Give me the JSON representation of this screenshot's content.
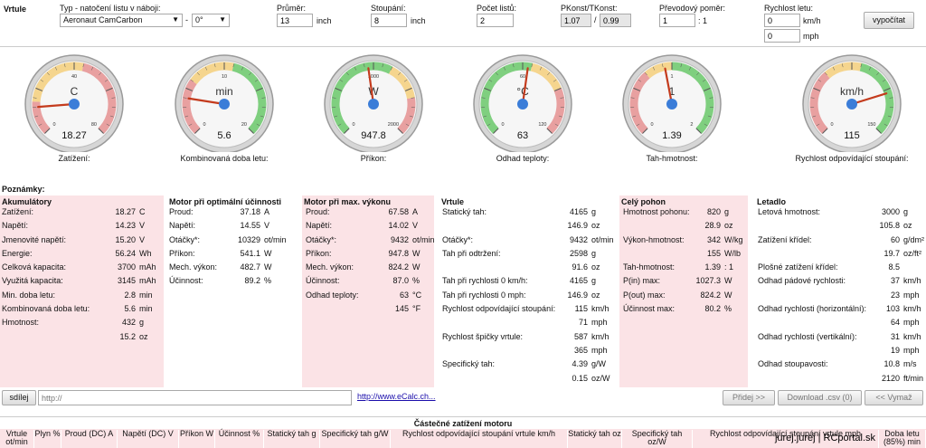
{
  "top": {
    "section": "Vrtule",
    "type_label": "Typ - natočení listu v náboji:",
    "type_value": "Aeronaut CamCarbon",
    "dash": "-",
    "angle_value": "0°",
    "diameter_label": "Průměr:",
    "diameter_value": "13",
    "diameter_unit": "inch",
    "pitch_label": "Stoupání:",
    "pitch_value": "8",
    "pitch_unit": "inch",
    "blades_label": "Počet listů:",
    "blades_value": "2",
    "konst_label": "PKonst/TKonst:",
    "pkonst_value": "1.07",
    "slash": "/",
    "tkonst_value": "0.99",
    "gear_label": "Převodový poměr:",
    "gear_value": "1",
    "gear_suffix": ": 1",
    "speed_label": "Rychlost letu:",
    "speed_kmh_value": "0",
    "speed_kmh_unit": "km/h",
    "speed_mph_value": "0",
    "speed_mph_unit": "mph",
    "calc_button": "vypočítat"
  },
  "gauges": [
    {
      "unit": "C",
      "value": "18.27",
      "label": "Zatížení:",
      "ticks": [
        "0",
        "40",
        "80"
      ],
      "needle": 0.15,
      "zones": "load"
    },
    {
      "unit": "min",
      "value": "5.6",
      "label": "Kombinovaná doba letu:",
      "ticks": [
        "0",
        "10",
        "20"
      ],
      "needle": 0.2,
      "zones": "time"
    },
    {
      "unit": "W",
      "value": "947.8",
      "label": "Příkon:",
      "ticks": [
        "0",
        "1000",
        "2000"
      ],
      "needle": 0.47,
      "zones": "power"
    },
    {
      "unit": "°C",
      "value": "63",
      "label": "Odhad teploty:",
      "ticks": [
        "0",
        "60",
        "120"
      ],
      "needle": 0.53,
      "zones": "temp"
    },
    {
      "unit": "1",
      "value": "1.39",
      "label": "Tah-hmotnost:",
      "ticks": [
        "0",
        "1",
        "2"
      ],
      "needle": 0.46,
      "zones": "thrust"
    },
    {
      "unit": "km/h",
      "value": "115",
      "label": "Rychlost odpovídající stoupání:",
      "ticks": [
        "0",
        "150"
      ],
      "needle": 0.77,
      "zones": "speed"
    }
  ],
  "notes_label": "Poznámky:",
  "columns": [
    {
      "title": "Akumulátory",
      "rows": [
        {
          "label": "Zatížení:",
          "value": "18.27",
          "unit": "C"
        },
        {
          "label": "Napětí:",
          "value": "14.23",
          "unit": "V"
        },
        {
          "label": "Jmenovité napětí:",
          "value": "15.20",
          "unit": "V"
        },
        {
          "label": "Energie:",
          "value": "56.24",
          "unit": "Wh"
        },
        {
          "label": "Celková kapacita:",
          "value": "3700",
          "unit": "mAh"
        },
        {
          "label": "Využitá kapacita:",
          "value": "3145",
          "unit": "mAh"
        },
        {
          "label": "Min. doba letu:",
          "value": "2.8",
          "unit": "min"
        },
        {
          "label": "Kombinovaná doba letu:",
          "value": "5.6",
          "unit": "min"
        },
        {
          "label": "Hmotnost:",
          "value": "432",
          "unit": "g"
        },
        {
          "label": "",
          "value": "15.2",
          "unit": "oz"
        }
      ]
    },
    {
      "title": "Motor při optimální účinnosti",
      "rows": [
        {
          "label": "Proud:",
          "value": "37.18",
          "unit": "A"
        },
        {
          "label": "Napětí:",
          "value": "14.55",
          "unit": "V"
        },
        {
          "label": "Otáčky*:",
          "value": "10329",
          "unit": "ot/min"
        },
        {
          "label": "Příkon:",
          "value": "541.1",
          "unit": "W"
        },
        {
          "label": "Mech. výkon:",
          "value": "482.7",
          "unit": "W"
        },
        {
          "label": "Účinnost:",
          "value": "89.2",
          "unit": "%"
        }
      ]
    },
    {
      "title": "Motor při max. výkonu",
      "rows": [
        {
          "label": "Proud:",
          "value": "67.58",
          "unit": "A"
        },
        {
          "label": "Napětí:",
          "value": "14.02",
          "unit": "V"
        },
        {
          "label": "Otáčky*:",
          "value": "9432",
          "unit": "ot/min"
        },
        {
          "label": "Příkon:",
          "value": "947.8",
          "unit": "W"
        },
        {
          "label": "Mech. výkon:",
          "value": "824.2",
          "unit": "W"
        },
        {
          "label": "Účinnost:",
          "value": "87.0",
          "unit": "%"
        },
        {
          "label": "Odhad teploty:",
          "value": "63",
          "unit": "°C"
        },
        {
          "label": "",
          "value": "145",
          "unit": "°F"
        }
      ]
    },
    {
      "title": "Vrtule",
      "rows": [
        {
          "label": "Statický tah:",
          "value": "4165",
          "unit": "g"
        },
        {
          "label": "",
          "value": "146.9",
          "unit": "oz"
        },
        {
          "label": "Otáčky*:",
          "value": "9432",
          "unit": "ot/min"
        },
        {
          "label": "Tah při odtržení:",
          "value": "2598",
          "unit": "g"
        },
        {
          "label": "",
          "value": "91.6",
          "unit": "oz"
        },
        {
          "label": "Tah při rychlosti 0 km/h:",
          "value": "4165",
          "unit": "g"
        },
        {
          "label": "Tah při rychlosti 0 mph:",
          "value": "146.9",
          "unit": "oz"
        },
        {
          "label": "Rychlost odpovídající stoupání:",
          "value": "115",
          "unit": "km/h"
        },
        {
          "label": "",
          "value": "71",
          "unit": "mph"
        },
        {
          "label": "Rychlost špičky vrtule:",
          "value": "587",
          "unit": "km/h"
        },
        {
          "label": "",
          "value": "365",
          "unit": "mph"
        },
        {
          "label": "Specifický tah:",
          "value": "4.39",
          "unit": "g/W"
        },
        {
          "label": "",
          "value": "0.15",
          "unit": "oz/W"
        }
      ]
    },
    {
      "title": "Celý pohon",
      "rows": [
        {
          "label": "Hmotnost pohonu:",
          "value": "820",
          "unit": "g"
        },
        {
          "label": "",
          "value": "28.9",
          "unit": "oz"
        },
        {
          "label": "Výkon-hmotnost:",
          "value": "342",
          "unit": "W/kg"
        },
        {
          "label": "",
          "value": "155",
          "unit": "W/lb"
        },
        {
          "label": "Tah-hmotnost:",
          "value": "1.39",
          "unit": ": 1"
        },
        {
          "label": "P(in) max:",
          "value": "1027.3",
          "unit": "W"
        },
        {
          "label": "P(out) max:",
          "value": "824.2",
          "unit": "W"
        },
        {
          "label": "Účinnost max:",
          "value": "80.2",
          "unit": "%"
        }
      ]
    },
    {
      "title": "Letadlo",
      "rows": [
        {
          "label": "Letová hmotnost:",
          "value": "3000",
          "unit": "g"
        },
        {
          "label": "",
          "value": "105.8",
          "unit": "oz"
        },
        {
          "label": "Zatížení křídel:",
          "value": "60",
          "unit": "g/dm²"
        },
        {
          "label": "",
          "value": "19.7",
          "unit": "oz/ft²"
        },
        {
          "label": "Plošné zatížení křídel:",
          "value": "8.5",
          "unit": ""
        },
        {
          "label": "Odhad pádové rychlosti:",
          "value": "37",
          "unit": "km/h"
        },
        {
          "label": "",
          "value": "23",
          "unit": "mph"
        },
        {
          "label": "Odhad rychlosti (horizontální):",
          "value": "103",
          "unit": "km/h"
        },
        {
          "label": "",
          "value": "64",
          "unit": "mph"
        },
        {
          "label": "Odhad rychlosti (vertikální):",
          "value": "31",
          "unit": "km/h"
        },
        {
          "label": "",
          "value": "19",
          "unit": "mph"
        },
        {
          "label": "Odhad stoupavosti:",
          "value": "10.8",
          "unit": "m/s"
        },
        {
          "label": "",
          "value": "2120",
          "unit": "ft/min"
        }
      ]
    }
  ],
  "bottom": {
    "share_button": "sdílej",
    "url_placeholder": "http://",
    "link": "http://www.eCalc.ch...",
    "add_button": "Přidej >>",
    "download_button": "Download .csv (0)",
    "clear_button": "<< Vymaž"
  },
  "partial": {
    "title": "Částečné zatížení motoru",
    "headers": [
      "Vrtule ot/min",
      "Plyn %",
      "Proud (DC) A",
      "Napětí (DC) V",
      "Příkon W",
      "Účinnost %",
      "Statický tah g",
      "Specifický tah g/W",
      "Rychlost odpovídající stoupání vrtule km/h",
      "Statický tah oz",
      "Specifický tah oz/W",
      "Rychlost odpovídající stoupání vrtule mph",
      "Doba letu (85%) min"
    ]
  },
  "watermark": "jurej.jurej | RCportal.sk"
}
